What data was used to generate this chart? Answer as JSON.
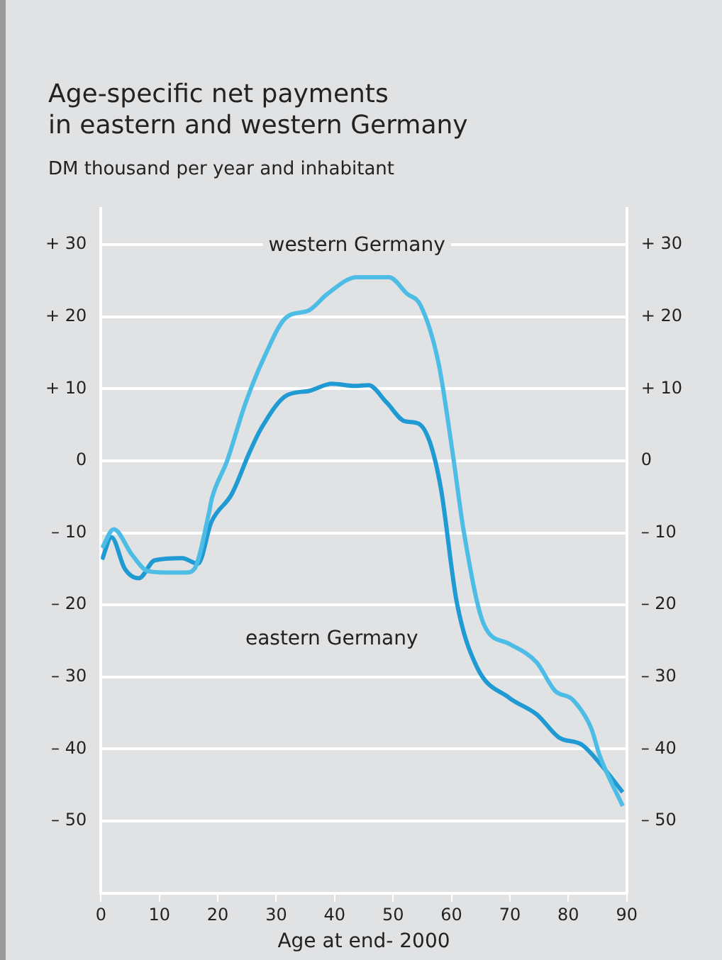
{
  "chart_data": {
    "type": "line",
    "title": "Age-specific net payments\nin eastern and western Germany",
    "subtitle": "DM thousand per year and inhabitant",
    "xlabel": "Age at end- 2000",
    "xlim": [
      0,
      90
    ],
    "xticks": [
      0,
      10,
      20,
      30,
      40,
      50,
      60,
      70,
      80,
      90
    ],
    "ylim": [
      -60,
      35
    ],
    "yticks": [
      {
        "value": 30,
        "label": "+ 30"
      },
      {
        "value": 20,
        "label": "+ 20"
      },
      {
        "value": 10,
        "label": "+ 10"
      },
      0,
      {
        "value": -10,
        "label": "– 10"
      },
      {
        "value": -20,
        "label": "– 20"
      },
      {
        "value": -30,
        "label": "– 30"
      },
      {
        "value": -40,
        "label": "– 40"
      },
      {
        "value": -50,
        "label": "– 50"
      }
    ],
    "y2lim": [
      -60,
      35
    ],
    "y2ticks": [
      {
        "value": 30,
        "label": "+ 30"
      },
      {
        "value": 20,
        "label": "+ 20"
      },
      {
        "value": 10,
        "label": "+ 10"
      },
      0,
      {
        "value": -10,
        "label": "– 10"
      },
      {
        "value": -20,
        "label": "– 20"
      },
      {
        "value": -30,
        "label": "– 30"
      },
      {
        "value": -40,
        "label": "– 40"
      },
      {
        "value": -50,
        "label": "– 50"
      }
    ],
    "grid": "y",
    "legend": false,
    "marker": "none",
    "line_style": "solid",
    "series": [
      {
        "name": "western Germany",
        "color": "#4dbde6",
        "x": [
          0.2,
          2.2,
          5.3,
          8,
          11,
          14.6,
          16,
          18.5,
          19,
          21.6,
          24.7,
          27.9,
          31.7,
          35.6,
          38.8,
          43.8,
          49.3,
          52.4,
          54.7,
          57.8,
          60.2,
          62.1,
          65.6,
          69.9,
          74.6,
          77.7,
          80.8,
          83.9,
          85.4,
          89.3
        ],
        "values": [
          -12.1,
          -9.5,
          -13,
          -15.3,
          -15.5,
          -15.5,
          -15,
          -7.2,
          -5.2,
          0,
          7.9,
          14.3,
          19.9,
          20.9,
          23.2,
          25.5,
          25.5,
          23.2,
          21.6,
          13.5,
          1.1,
          -9.8,
          -22.8,
          -25.4,
          -28,
          -31.9,
          -33.2,
          -37.1,
          -41,
          -47.9
        ]
      },
      {
        "name": "eastern Germany",
        "color": "#1f9ad3",
        "x": [
          0.2,
          1.8,
          4.1,
          6.5,
          9.2,
          13.9,
          16.6,
          18.9,
          22.4,
          25.5,
          27.5,
          31.8,
          35.6,
          39.5,
          43.4,
          45.8,
          48.9,
          52,
          54.3,
          56.3,
          58.2,
          60.9,
          64.4,
          69.9,
          74.6,
          78.4,
          82.3,
          85.4,
          89.3
        ],
        "values": [
          -13.7,
          -10.6,
          -15,
          -16.3,
          -13.8,
          -13.5,
          -14.3,
          -8.5,
          -4.6,
          1.3,
          4.6,
          9.1,
          9.7,
          10.7,
          10.4,
          10.5,
          8.1,
          5.5,
          5.2,
          2.6,
          -3.9,
          -19.6,
          -28.7,
          -32.9,
          -35.2,
          -38.4,
          -39.4,
          -42,
          -46
        ]
      }
    ]
  }
}
